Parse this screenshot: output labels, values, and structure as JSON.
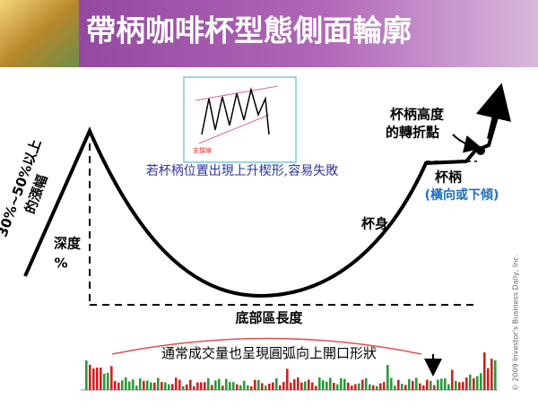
{
  "header": {
    "title": "帶柄咖啡杯型態側面輪廓"
  },
  "labels": {
    "rise": [
      "30%~50%以上",
      "的漲幅"
    ],
    "depth": [
      "深度",
      "%"
    ],
    "inset_caption": "若杯柄位置出現上升楔形,容易失敗",
    "pivot": [
      "杯柄高度",
      "的轉折點"
    ],
    "handle": "杯柄",
    "handle_note": "(橫向或下傾)",
    "body": "杯身",
    "base_length": "底部區長度",
    "volume_note": "通常成交量也呈現圓弧向上開口形狀",
    "copyright": "© 2009 Investor's Business Daily, Inc."
  }
}
